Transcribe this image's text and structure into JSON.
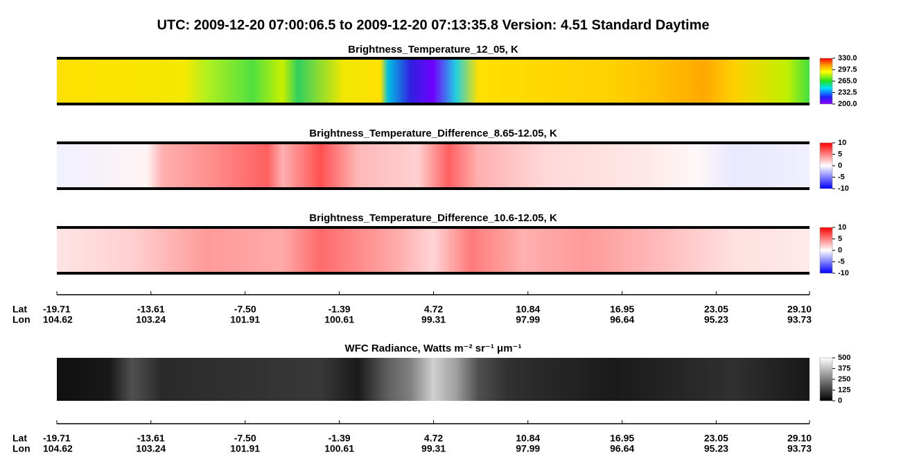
{
  "title": "UTC:  2009-12-20   07:00:06.5  to  2009-12-20   07:13:35.8    Version: 4.51  Standard Daytime",
  "chart_data": [
    {
      "type": "heatmap",
      "title": "Brightness_Temperature_12_05, K",
      "colormap": "rainbow",
      "clim": [
        200,
        330
      ],
      "cticks": [
        {
          "value": 200,
          "label": "200.0"
        },
        {
          "value": 232.5,
          "label": "232.5"
        },
        {
          "value": 265,
          "label": "265.0"
        },
        {
          "value": 297.5,
          "label": "297.5"
        },
        {
          "value": 330,
          "label": "330.0"
        }
      ]
    },
    {
      "type": "heatmap",
      "title": "Brightness_Temperature_Difference_8.65-12.05, K",
      "colormap": "bwr",
      "clim": [
        -10,
        10
      ],
      "cticks": [
        -10,
        -5,
        0,
        5,
        10
      ]
    },
    {
      "type": "heatmap",
      "title": "Brightness_Temperature_Difference_10.6-12.05, K",
      "colormap": "bwr",
      "clim": [
        -10,
        10
      ],
      "cticks": [
        -10,
        -5,
        0,
        5,
        10
      ]
    },
    {
      "type": "axis",
      "lat_label": "Lat",
      "lon_label": "Lon",
      "xlim": [
        -19.71,
        29.1
      ],
      "xticks": [
        -19.71,
        -13.61,
        {
          "value": -7.5,
          "label": "-7.50"
        },
        -1.39,
        4.72,
        10.84,
        16.95,
        23.05,
        {
          "value": 29.1,
          "label": "29.10"
        }
      ],
      "lon": [
        104.62,
        103.24,
        101.91,
        100.61,
        99.31,
        97.99,
        96.64,
        95.23,
        93.73
      ]
    },
    {
      "type": "heatmap",
      "title": "WFC Radiance, Watts m⁻² sr⁻¹ μm⁻¹",
      "colormap": "gray",
      "clim": [
        0,
        500
      ],
      "cticks": [
        0,
        125,
        250,
        375,
        500
      ]
    },
    {
      "type": "axis",
      "lat_label": "Lat",
      "lon_label": "Lon",
      "xlim": [
        -19.71,
        29.1
      ],
      "xticks": [
        -19.71,
        -13.61,
        {
          "value": -7.5,
          "label": "-7.50"
        },
        -1.39,
        4.72,
        10.84,
        16.95,
        23.05,
        {
          "value": 29.1,
          "label": "29.10"
        }
      ],
      "lon": [
        104.62,
        103.24,
        101.91,
        100.61,
        99.31,
        97.99,
        96.64,
        95.23,
        93.73
      ]
    }
  ]
}
